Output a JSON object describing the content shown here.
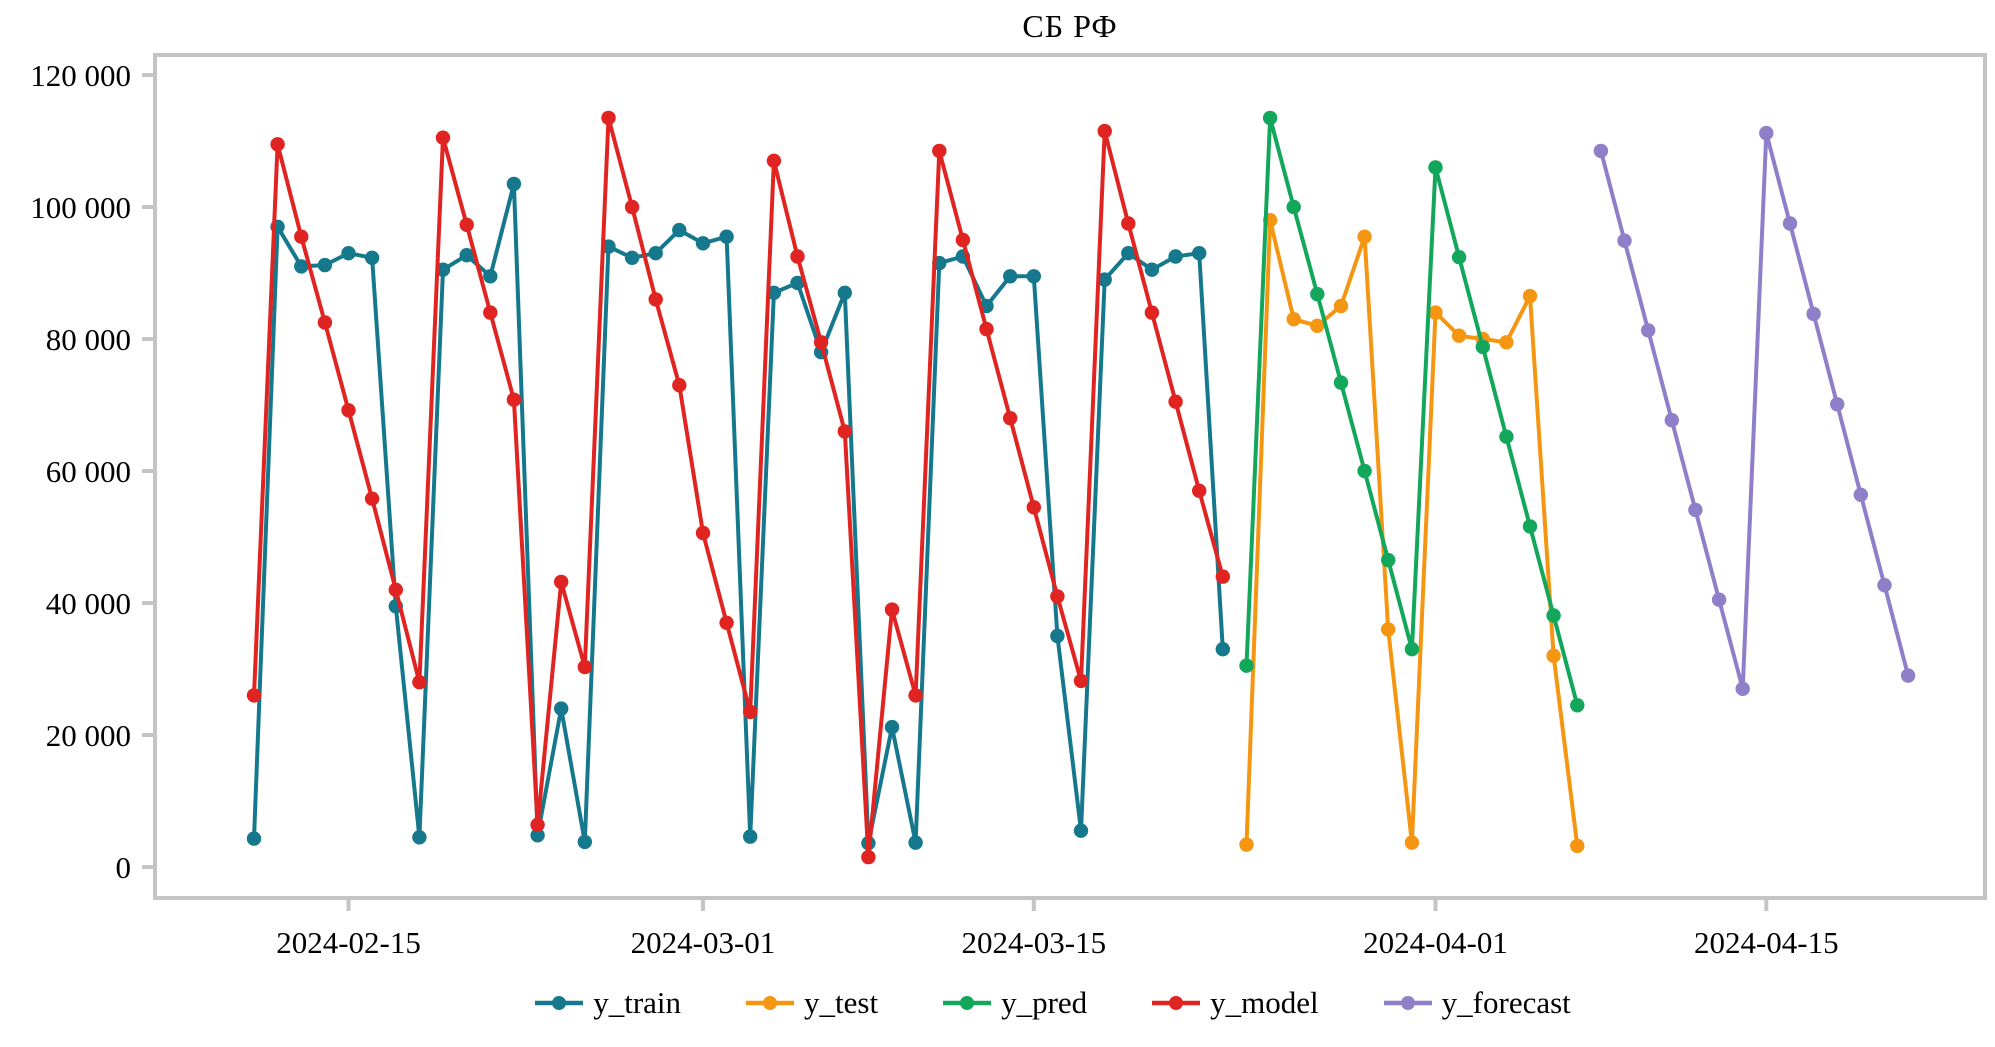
{
  "chart_data": {
    "type": "line",
    "title": "СБ РФ",
    "xlabel": "",
    "ylabel": "",
    "ylim": [
      0,
      120000
    ],
    "grid": false,
    "legend_position": "bottom-center",
    "x_start": "2024-02-11",
    "x_end": "2024-04-21",
    "yticks": [
      {
        "value": 0,
        "label": "0"
      },
      {
        "value": 20000,
        "label": "20 000"
      },
      {
        "value": 40000,
        "label": "40 000"
      },
      {
        "value": 60000,
        "label": "60 000"
      },
      {
        "value": 80000,
        "label": "80 000"
      },
      {
        "value": 100000,
        "label": "100 000"
      },
      {
        "value": 120000,
        "label": "120 000"
      }
    ],
    "xticks": [
      {
        "date": "2024-02-15",
        "label": "2024-02-15"
      },
      {
        "date": "2024-03-01",
        "label": "2024-03-01"
      },
      {
        "date": "2024-03-15",
        "label": "2024-03-15"
      },
      {
        "date": "2024-04-01",
        "label": "2024-04-01"
      },
      {
        "date": "2024-04-15",
        "label": "2024-04-15"
      }
    ],
    "frame_color": "#c4c4c4",
    "series": [
      {
        "name": "y_train",
        "color": "#16788c",
        "start": "2024-02-11",
        "values": [
          4300,
          97000,
          91000,
          91200,
          93000,
          92300,
          39500,
          4500,
          90500,
          92700,
          89500,
          103500,
          4800,
          24000,
          3800,
          94000,
          92300,
          93000,
          96500,
          94500,
          95500,
          4600,
          87000,
          88500,
          78000,
          87000,
          3600,
          21200,
          3700,
          91500,
          92500,
          85000,
          89500,
          89500,
          35000,
          5500,
          89000,
          93000,
          90500,
          92500,
          93000,
          33000
        ]
      },
      {
        "name": "y_test",
        "color": "#f59613",
        "start": "2024-03-24",
        "values": [
          3400,
          98000,
          83000,
          82000,
          85000,
          95500,
          36000,
          3700,
          84000,
          80500,
          80000,
          79500,
          86500,
          32000,
          3200
        ]
      },
      {
        "name": "y_pred",
        "color": "#13a75c",
        "start": "2024-03-24",
        "values": [
          30500,
          113500,
          100000,
          86800,
          73400,
          60000,
          46500,
          33000,
          106000,
          92400,
          78800,
          65200,
          51600,
          38100,
          24500
        ]
      },
      {
        "name": "y_model",
        "color": "#e02421",
        "start": "2024-02-11",
        "values": [
          26000,
          109500,
          95500,
          82500,
          69200,
          55800,
          42000,
          28000,
          110500,
          97300,
          84000,
          70800,
          6400,
          43200,
          30300,
          113500,
          100000,
          86000,
          73000,
          50600,
          37000,
          23500,
          107000,
          92500,
          79500,
          66000,
          1500,
          39000,
          26000,
          108500,
          95000,
          81500,
          68000,
          54500,
          41000,
          28200,
          111500,
          97500,
          84000,
          70500,
          57000,
          44000
        ]
      },
      {
        "name": "y_forecast",
        "color": "#8f7fc9",
        "start": "2024-04-08",
        "values": [
          108500,
          94900,
          81300,
          67700,
          54100,
          40500,
          27000,
          111200,
          97500,
          83800,
          70100,
          56400,
          42700,
          29000
        ]
      }
    ]
  }
}
